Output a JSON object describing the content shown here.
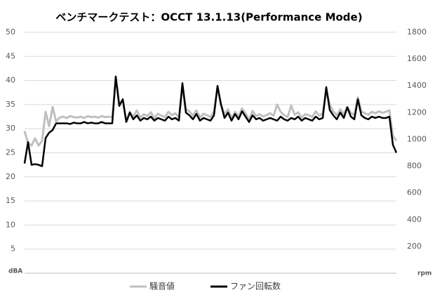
{
  "chart_data": {
    "type": "line",
    "title": "ベンチマークテスト：OCCT 13.1.13(Performance Mode)",
    "ylabel": "dBA",
    "y2label": "rpm",
    "ylim": [
      0,
      50
    ],
    "yticks": [
      5,
      10,
      15,
      20,
      25,
      30,
      35,
      40,
      45,
      50
    ],
    "y2lim": [
      0,
      1800
    ],
    "y2ticks": [
      200,
      400,
      600,
      800,
      1000,
      1200,
      1400,
      1600,
      1800
    ],
    "grid": true,
    "legend": "bottom",
    "series": [
      {
        "name": "騒音値",
        "color": "#bfbfbf",
        "values": [
          29.5,
          27,
          26.5,
          28,
          26.5,
          27.5,
          33.5,
          30.5,
          34.5,
          31.5,
          32.3,
          32.5,
          32.2,
          32.6,
          32.4,
          32.3,
          32.5,
          32.2,
          32.6,
          32.4,
          32.5,
          32.3,
          32.6,
          32.4,
          32.5,
          32.4,
          40.5,
          35,
          36,
          31.5,
          33.5,
          32.5,
          33.8,
          32.3,
          33,
          32.6,
          33.4,
          32.2,
          33.1,
          32.7,
          32.4,
          33.5,
          32.8,
          33.2,
          32.3,
          39,
          34,
          33.6,
          32.7,
          33.8,
          32.3,
          33.1,
          32.8,
          32.4,
          33.6,
          38.5,
          35,
          33,
          34,
          32.2,
          33.5,
          32.6,
          34.2,
          33.2,
          31.8,
          33.7,
          32.6,
          33,
          32.5,
          32.8,
          33.2,
          32.7,
          35,
          33.5,
          32.8,
          32.4,
          34.8,
          32.9,
          33.4,
          32.3,
          33,
          32.8,
          32.4,
          33.6,
          32.7,
          33.2,
          38,
          35,
          33.6,
          32.8,
          34,
          33,
          34.5,
          33.3,
          32.8,
          36.5,
          33.6,
          33.2,
          32.9,
          33.5,
          33.2,
          33.6,
          33.3,
          33.5,
          33.8,
          28.5,
          27.5
        ]
      },
      {
        "name": "ファン回転数",
        "color": "#000000",
        "axis": "y2",
        "values": [
          820,
          980,
          810,
          815,
          810,
          800,
          1010,
          1050,
          1070,
          1120,
          1120,
          1120,
          1120,
          1115,
          1125,
          1120,
          1120,
          1130,
          1120,
          1125,
          1120,
          1120,
          1130,
          1120,
          1120,
          1120,
          1470,
          1250,
          1300,
          1130,
          1200,
          1150,
          1180,
          1140,
          1160,
          1150,
          1170,
          1140,
          1160,
          1150,
          1140,
          1170,
          1150,
          1160,
          1140,
          1420,
          1200,
          1180,
          1150,
          1190,
          1140,
          1160,
          1150,
          1140,
          1180,
          1400,
          1260,
          1160,
          1200,
          1140,
          1190,
          1150,
          1210,
          1170,
          1130,
          1180,
          1150,
          1160,
          1140,
          1150,
          1160,
          1150,
          1140,
          1170,
          1150,
          1140,
          1160,
          1150,
          1170,
          1140,
          1160,
          1150,
          1140,
          1170,
          1150,
          1160,
          1390,
          1220,
          1180,
          1150,
          1200,
          1160,
          1240,
          1170,
          1150,
          1300,
          1180,
          1160,
          1150,
          1170,
          1160,
          1170,
          1160,
          1160,
          1170,
          960,
          900
        ]
      }
    ]
  }
}
